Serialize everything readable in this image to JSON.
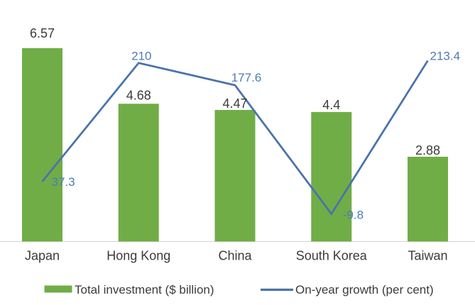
{
  "chart_data": {
    "type": "bar+line",
    "title": "",
    "xlabel": "",
    "ylabel": "",
    "categories": [
      "Japan",
      "Hong Kong",
      "China",
      "South Korea",
      "Taiwan"
    ],
    "series": [
      {
        "name": "Total investment ($ billion)",
        "type": "bar",
        "axis": "primary",
        "color": "#70ad47",
        "values": [
          6.57,
          4.68,
          4.47,
          4.4,
          2.88
        ]
      },
      {
        "name": "On-year growth (per cent)",
        "type": "line",
        "axis": "secondary",
        "color": "#4a73ab",
        "values": [
          37.3,
          210,
          177.6,
          -9.8,
          213.4
        ]
      }
    ],
    "primary_ylim": [
      0,
      7
    ],
    "secondary_ylim": [
      -50,
      250
    ],
    "grid": false,
    "y_axis_ticks_visible": false,
    "legend_position": "bottom",
    "colors": {
      "bar_fill": "#70ad47",
      "line_stroke": "#4a73ab",
      "line_label_text": "#4d7bb5",
      "dark_text": "#3b3b3b",
      "axis_line": "#d9d9d9",
      "background": "#ffffff"
    }
  }
}
